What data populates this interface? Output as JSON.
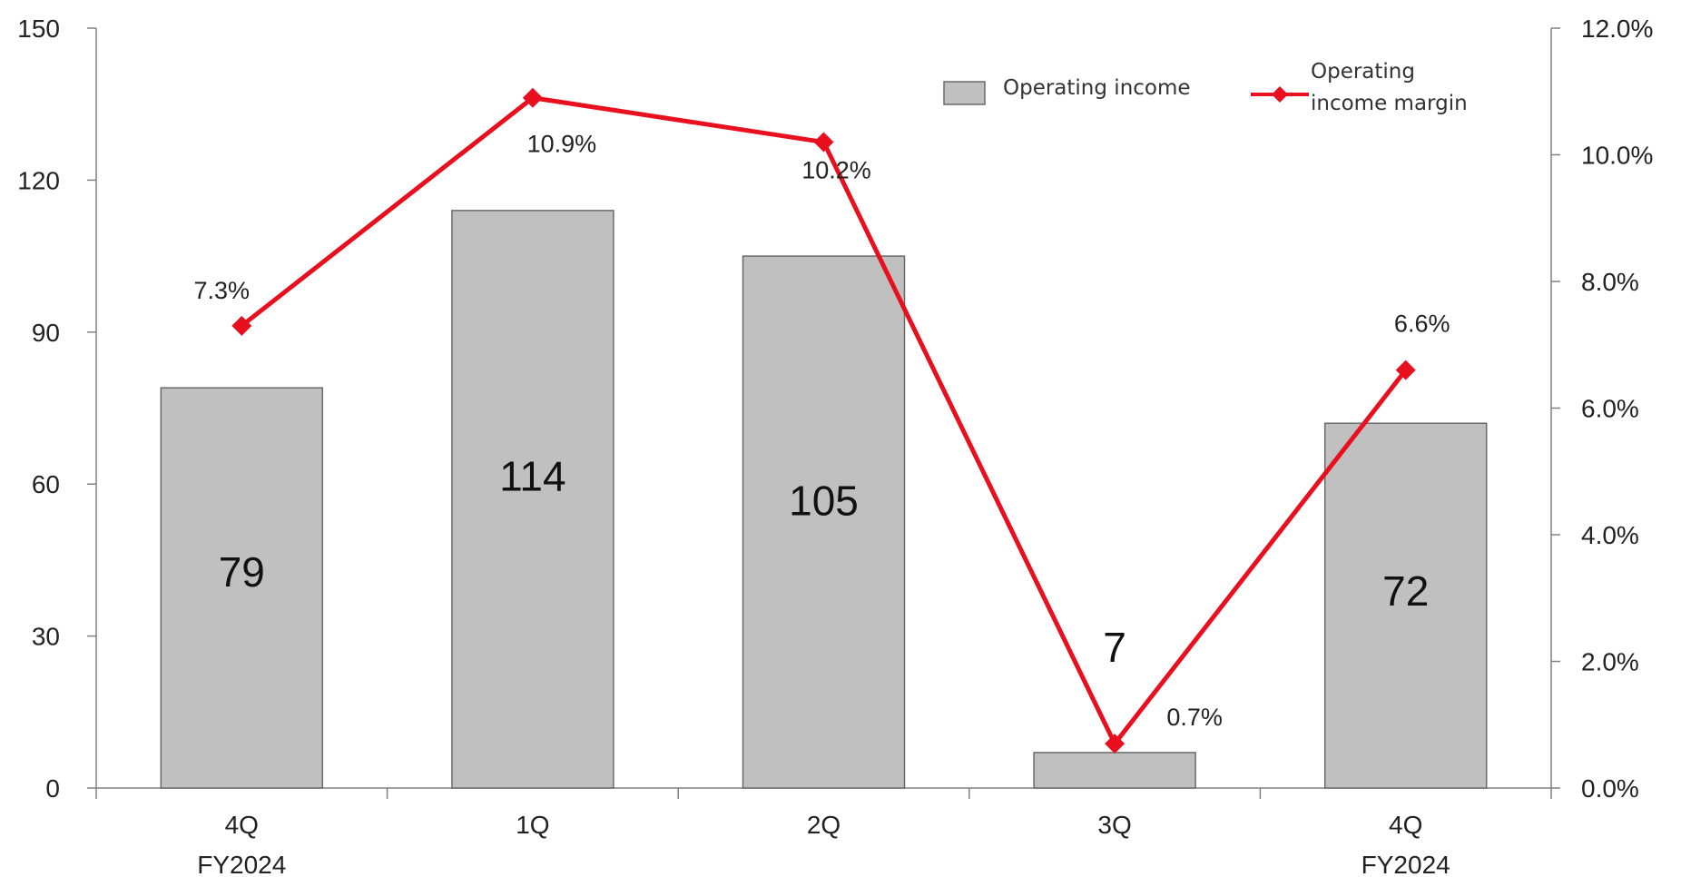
{
  "chart_data": {
    "type": "bar",
    "categories": [
      [
        "4Q",
        "FY2024"
      ],
      [
        "1Q"
      ],
      [
        "2Q"
      ],
      [
        "3Q"
      ],
      [
        "4Q",
        "FY2024"
      ]
    ],
    "series": [
      {
        "name": "Operating income",
        "type": "bar",
        "axis": "left",
        "values": [
          79,
          114,
          105,
          7,
          72
        ],
        "labels": [
          "79",
          "114",
          "105",
          "7",
          "72"
        ],
        "color": "#c0c0c0"
      },
      {
        "name": "Operating income margin",
        "legend_lines": [
          "Operating",
          "income margin"
        ],
        "type": "line",
        "axis": "right",
        "values": [
          7.3,
          10.9,
          10.2,
          0.7,
          6.6
        ],
        "labels": [
          "7.3%",
          "10.9%",
          "10.2%",
          "0.7%",
          "6.6%"
        ],
        "color": "#e8101f",
        "marker": "diamond"
      }
    ],
    "y_left": {
      "ylim": [
        0,
        150
      ],
      "ticks": [
        "0",
        "30",
        "60",
        "90",
        "120",
        "150"
      ]
    },
    "y_right": {
      "ylim": [
        0,
        12
      ],
      "ticks": [
        "0.0%",
        "2.0%",
        "4.0%",
        "6.0%",
        "8.0%",
        "10.0%",
        "12.0%"
      ]
    },
    "grid": false,
    "legend_position": "top-right"
  }
}
